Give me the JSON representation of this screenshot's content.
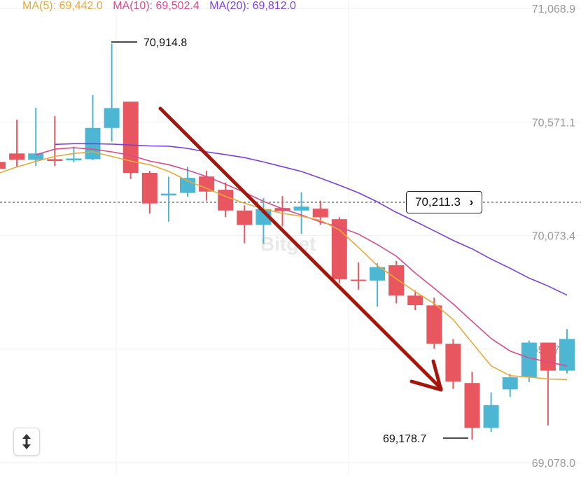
{
  "legend": {
    "ma5": "MA(5): 69,442.0",
    "ma10": "MA(10): 69,502.4",
    "ma20": "MA(20): 69,812.0"
  },
  "colors": {
    "up": "#4db6d3",
    "down": "#e8575f",
    "ma5": "#e8a83a",
    "ma10": "#d94a8c",
    "ma20": "#7b3fe0",
    "arrow": "#a3170c",
    "axis_text": "#999999"
  },
  "high_label": "70,914.8",
  "low_label": "69,178.7",
  "current_price": "70,211.3",
  "current_price_chevron": "›",
  "watermark": "Bitget",
  "scale_icon": "vertical-resize-icon",
  "chart_data": {
    "type": "candlestick",
    "y_ticks": [
      "71,068.9",
      "70,571.1",
      "70,073.4",
      "69,575.7",
      "69,078.0"
    ],
    "ylim": [
      69078.0,
      71068.9
    ],
    "current_price": 70211.3,
    "candles": [
      {
        "o": 70396,
        "h": 70450,
        "l": 70333,
        "c": 70366
      },
      {
        "o": 70433,
        "h": 70581,
        "l": 70372,
        "c": 70405
      },
      {
        "o": 70405,
        "h": 70633,
        "l": 70378,
        "c": 70433
      },
      {
        "o": 70408,
        "h": 70597,
        "l": 70378,
        "c": 70400
      },
      {
        "o": 70403,
        "h": 70463,
        "l": 70394,
        "c": 70411
      },
      {
        "o": 70408,
        "h": 70689,
        "l": 70403,
        "c": 70545
      },
      {
        "o": 70545,
        "h": 70914.8,
        "l": 70485,
        "c": 70632
      },
      {
        "o": 70660,
        "h": 70660,
        "l": 70321,
        "c": 70348
      },
      {
        "o": 70348,
        "h": 70357,
        "l": 70169,
        "c": 70214
      },
      {
        "o": 70249,
        "h": 70331,
        "l": 70134,
        "c": 70257
      },
      {
        "o": 70260,
        "h": 70374,
        "l": 70243,
        "c": 70326
      },
      {
        "o": 70332,
        "h": 70357,
        "l": 70226,
        "c": 70266
      },
      {
        "o": 70274,
        "h": 70306,
        "l": 70154,
        "c": 70183
      },
      {
        "o": 70183,
        "h": 70206,
        "l": 70039,
        "c": 70120
      },
      {
        "o": 70120,
        "h": 70237,
        "l": 70037,
        "c": 70189
      },
      {
        "o": 70194,
        "h": 70246,
        "l": 70114,
        "c": 70180
      },
      {
        "o": 70183,
        "h": 70263,
        "l": 70080,
        "c": 70200
      },
      {
        "o": 70191,
        "h": 70226,
        "l": 70120,
        "c": 70153
      },
      {
        "o": 70145,
        "h": 70154,
        "l": 69865,
        "c": 69882
      },
      {
        "o": 69880,
        "h": 69956,
        "l": 69836,
        "c": 69876
      },
      {
        "o": 69876,
        "h": 69953,
        "l": 69762,
        "c": 69935
      },
      {
        "o": 69943,
        "h": 69962,
        "l": 69776,
        "c": 69810
      },
      {
        "o": 69810,
        "h": 69832,
        "l": 69747,
        "c": 69768
      },
      {
        "o": 69767,
        "h": 69801,
        "l": 69577,
        "c": 69599
      },
      {
        "o": 69599,
        "h": 69619,
        "l": 69401,
        "c": 69433
      },
      {
        "o": 69427,
        "h": 69476,
        "l": 69178.7,
        "c": 69230
      },
      {
        "o": 69230,
        "h": 69386,
        "l": 69212,
        "c": 69330
      },
      {
        "o": 69399,
        "h": 69467,
        "l": 69366,
        "c": 69452
      },
      {
        "o": 69452,
        "h": 69613,
        "l": 69431,
        "c": 69604
      },
      {
        "o": 69604,
        "h": 69604,
        "l": 69241,
        "c": 69481
      },
      {
        "o": 69481,
        "h": 69663,
        "l": 69469,
        "c": 69620
      }
    ],
    "ma5": [
      70345,
      70374,
      70398,
      70420,
      70433,
      70440,
      70420,
      70400,
      70384,
      70355,
      70313,
      70280,
      70245,
      70215,
      70190,
      70170,
      70158,
      70140,
      70098,
      70022,
      69942,
      69884,
      69827,
      69775,
      69705,
      69603,
      69502,
      69459,
      69453,
      69445,
      69442
    ],
    "ma10": [
      70427,
      70452,
      70458,
      70452,
      70440,
      70425,
      70400,
      70384,
      70360,
      70332,
      70298,
      70262,
      70223,
      70191,
      70163,
      70133,
      70111,
      70080,
      70034,
      69983,
      69909,
      69842,
      69773,
      69697,
      69622,
      69567,
      69537,
      69519,
      69502
    ],
    "ma20": [
      70473,
      70476,
      70476,
      70474,
      70470,
      70466,
      70465,
      70455,
      70440,
      70428,
      70415,
      70396,
      70375,
      70354,
      70325,
      70294,
      70261,
      70221,
      70175,
      70135,
      70094,
      70052,
      70015,
      69970,
      69930,
      69887,
      69852,
      69812
    ]
  }
}
